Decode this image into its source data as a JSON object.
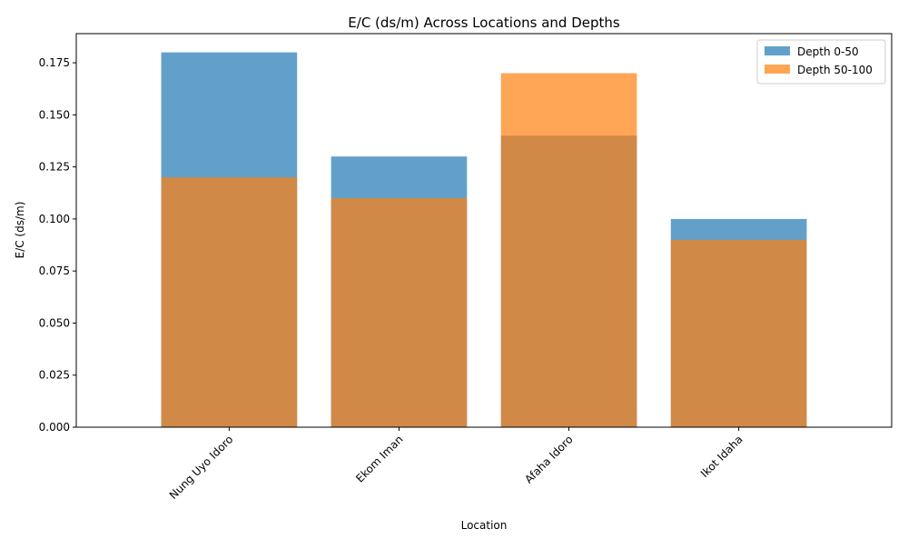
{
  "chart_data": {
    "type": "bar",
    "title": "E/C (ds/m) Across Locations and Depths",
    "xlabel": "Location",
    "ylabel": "E/C (ds/m)",
    "categories": [
      "Nung Uyo Idoro",
      "Ekom Iman",
      "Afaha Idoro",
      "Ikot Idaha"
    ],
    "series": [
      {
        "name": "Depth 0-50",
        "values": [
          0.18,
          0.13,
          0.14,
          0.1
        ],
        "color": "#1f77b4",
        "opacity": 0.7
      },
      {
        "name": "Depth 50-100",
        "values": [
          0.12,
          0.11,
          0.17,
          0.09
        ],
        "color": "#ff7f0e",
        "opacity": 0.7
      }
    ],
    "ylim": [
      0,
      0.189
    ],
    "yticks": [
      "0.000",
      "0.025",
      "0.050",
      "0.075",
      "0.100",
      "0.125",
      "0.150",
      "0.175"
    ],
    "overlap": true,
    "grid": false,
    "legend": "top-right"
  }
}
